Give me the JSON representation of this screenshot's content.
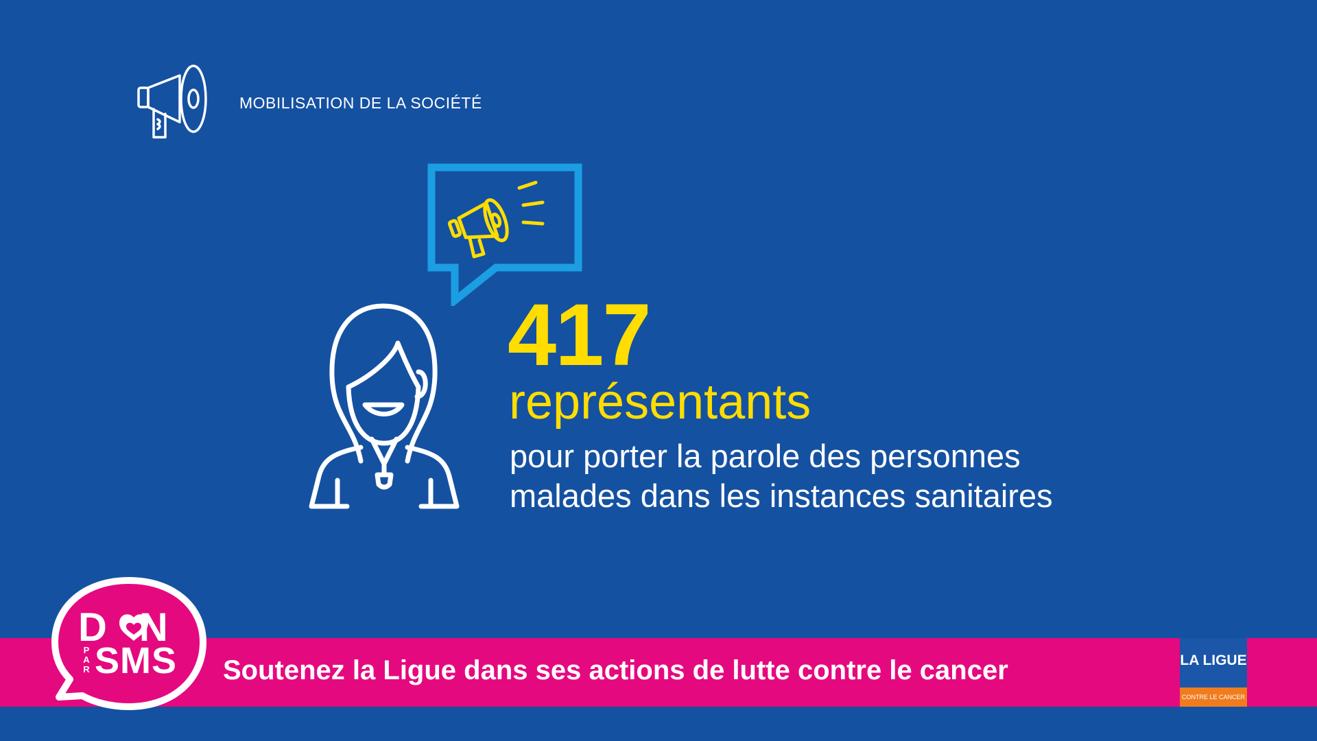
{
  "colors": {
    "background": "#1551a1",
    "accent_yellow": "#ffdd00",
    "light_blue": "#1c9ee3",
    "pink": "#e5097f",
    "white": "#ffffff",
    "orange": "#f07c1e"
  },
  "header": {
    "icon": "megaphone-icon",
    "label": "MOBILISATION DE LA SOCIÉTÉ"
  },
  "illustration": {
    "bubble_icon": "megaphone-speech-bubble-icon",
    "person_icon": "representative-person-icon"
  },
  "stat": {
    "number": "417",
    "unit": "représentants",
    "description_lines": [
      "pour porter la parole des personnes",
      "malades dans les instances sanitaires"
    ]
  },
  "footer": {
    "badge": {
      "line1_left": "D",
      "line1_right": "N",
      "par": [
        "P",
        "A",
        "R"
      ],
      "sms": "SMS"
    },
    "text": "Soutenez la Ligue dans ses actions de lutte contre le cancer",
    "logo": {
      "name": "LA LIGUE",
      "subtitle": "CONTRE LE CANCER"
    }
  }
}
